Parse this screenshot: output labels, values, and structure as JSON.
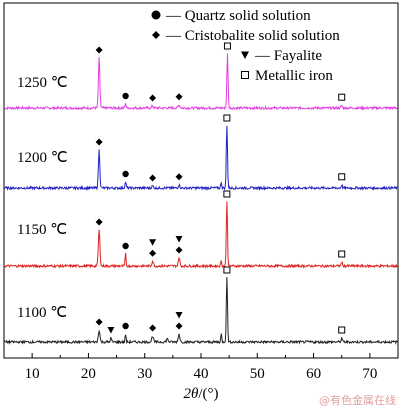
{
  "chart_data": {
    "type": "line",
    "title": "",
    "xlabel_italic": "2θ",
    "xlabel_unit": "/(°)",
    "ylabel": "",
    "xlim": [
      5,
      75
    ],
    "xticks": [
      10,
      20,
      30,
      40,
      50,
      60,
      70
    ],
    "grid": false,
    "legend_position": "top-right",
    "legend": [
      {
        "marker": "●",
        "text": "— Quartz solid solution"
      },
      {
        "marker": "◆",
        "text": "— Cristobalite solid solution"
      },
      {
        "marker": "▼",
        "text": "— Fayalite"
      },
      {
        "marker": "□",
        "text": "Metallic iron"
      }
    ],
    "series": [
      {
        "name": "1250 ℃",
        "color": "#e040e0",
        "baseline": 0.05,
        "peaks": [
          {
            "x": 21.9,
            "h": 1.25,
            "w": 0.18
          },
          {
            "x": 26.6,
            "h": 0.1,
            "w": 0.15
          },
          {
            "x": 31.4,
            "h": 0.05,
            "w": 0.2
          },
          {
            "x": 36.1,
            "h": 0.08,
            "w": 0.2
          },
          {
            "x": 44.7,
            "h": 1.35,
            "w": 0.15
          },
          {
            "x": 65.0,
            "h": 0.07,
            "w": 0.15
          }
        ],
        "markers": [
          {
            "x": 21.9,
            "symbol": "◆"
          },
          {
            "x": 26.6,
            "symbol": "●"
          },
          {
            "x": 31.4,
            "symbol": "◆"
          },
          {
            "x": 36.1,
            "symbol": "◆"
          },
          {
            "x": 44.7,
            "symbol": "□"
          },
          {
            "x": 65.0,
            "symbol": "□"
          }
        ]
      },
      {
        "name": "1200 ℃",
        "color": "#2020c0",
        "baseline": 0.05,
        "peaks": [
          {
            "x": 21.9,
            "h": 0.95,
            "w": 0.18
          },
          {
            "x": 26.6,
            "h": 0.15,
            "w": 0.15
          },
          {
            "x": 31.4,
            "h": 0.05,
            "w": 0.2
          },
          {
            "x": 36.1,
            "h": 0.08,
            "w": 0.2
          },
          {
            "x": 44.6,
            "h": 1.55,
            "w": 0.15
          },
          {
            "x": 43.6,
            "h": 0.15,
            "w": 0.12
          },
          {
            "x": 65.0,
            "h": 0.08,
            "w": 0.15
          }
        ],
        "markers": [
          {
            "x": 21.9,
            "symbol": "◆"
          },
          {
            "x": 26.6,
            "symbol": "●"
          },
          {
            "x": 31.4,
            "symbol": "◆"
          },
          {
            "x": 36.1,
            "symbol": "◆"
          },
          {
            "x": 44.6,
            "symbol": "□"
          },
          {
            "x": 65.0,
            "symbol": "□"
          }
        ]
      },
      {
        "name": "1150 ℃",
        "color": "#e02020",
        "baseline": 0.05,
        "peaks": [
          {
            "x": 21.9,
            "h": 0.9,
            "w": 0.2
          },
          {
            "x": 26.6,
            "h": 0.3,
            "w": 0.12
          },
          {
            "x": 31.4,
            "h": 0.12,
            "w": 0.2
          },
          {
            "x": 36.1,
            "h": 0.2,
            "w": 0.2
          },
          {
            "x": 44.6,
            "h": 1.6,
            "w": 0.15
          },
          {
            "x": 43.6,
            "h": 0.15,
            "w": 0.12
          },
          {
            "x": 65.0,
            "h": 0.1,
            "w": 0.15
          }
        ],
        "markers": [
          {
            "x": 21.9,
            "symbol": "◆"
          },
          {
            "x": 26.6,
            "symbol": "●"
          },
          {
            "x": 31.4,
            "symbol": "◆"
          },
          {
            "x": 31.4,
            "symbol": "▼"
          },
          {
            "x": 36.1,
            "symbol": "◆"
          },
          {
            "x": 36.1,
            "symbol": "▼"
          },
          {
            "x": 44.6,
            "symbol": "□"
          },
          {
            "x": 65.0,
            "symbol": "□"
          }
        ]
      },
      {
        "name": "1100 ℃",
        "color": "#202020",
        "baseline": 0.05,
        "peaks": [
          {
            "x": 21.9,
            "h": 0.3,
            "w": 0.2
          },
          {
            "x": 24.0,
            "h": 0.1,
            "w": 0.15
          },
          {
            "x": 26.6,
            "h": 0.2,
            "w": 0.12
          },
          {
            "x": 31.4,
            "h": 0.15,
            "w": 0.2
          },
          {
            "x": 34.0,
            "h": 0.08,
            "w": 0.2
          },
          {
            "x": 36.1,
            "h": 0.2,
            "w": 0.2
          },
          {
            "x": 44.6,
            "h": 1.6,
            "w": 0.15
          },
          {
            "x": 43.6,
            "h": 0.2,
            "w": 0.12
          },
          {
            "x": 65.0,
            "h": 0.1,
            "w": 0.15
          }
        ],
        "markers": [
          {
            "x": 21.9,
            "symbol": "◆"
          },
          {
            "x": 24.0,
            "symbol": "▼"
          },
          {
            "x": 26.6,
            "symbol": "●"
          },
          {
            "x": 31.4,
            "symbol": "◆"
          },
          {
            "x": 36.1,
            "symbol": "◆"
          },
          {
            "x": 36.1,
            "symbol": "▼"
          },
          {
            "x": 44.6,
            "symbol": "□"
          },
          {
            "x": 65.0,
            "symbol": "□"
          }
        ]
      }
    ]
  },
  "watermark": "@有色金属在线"
}
